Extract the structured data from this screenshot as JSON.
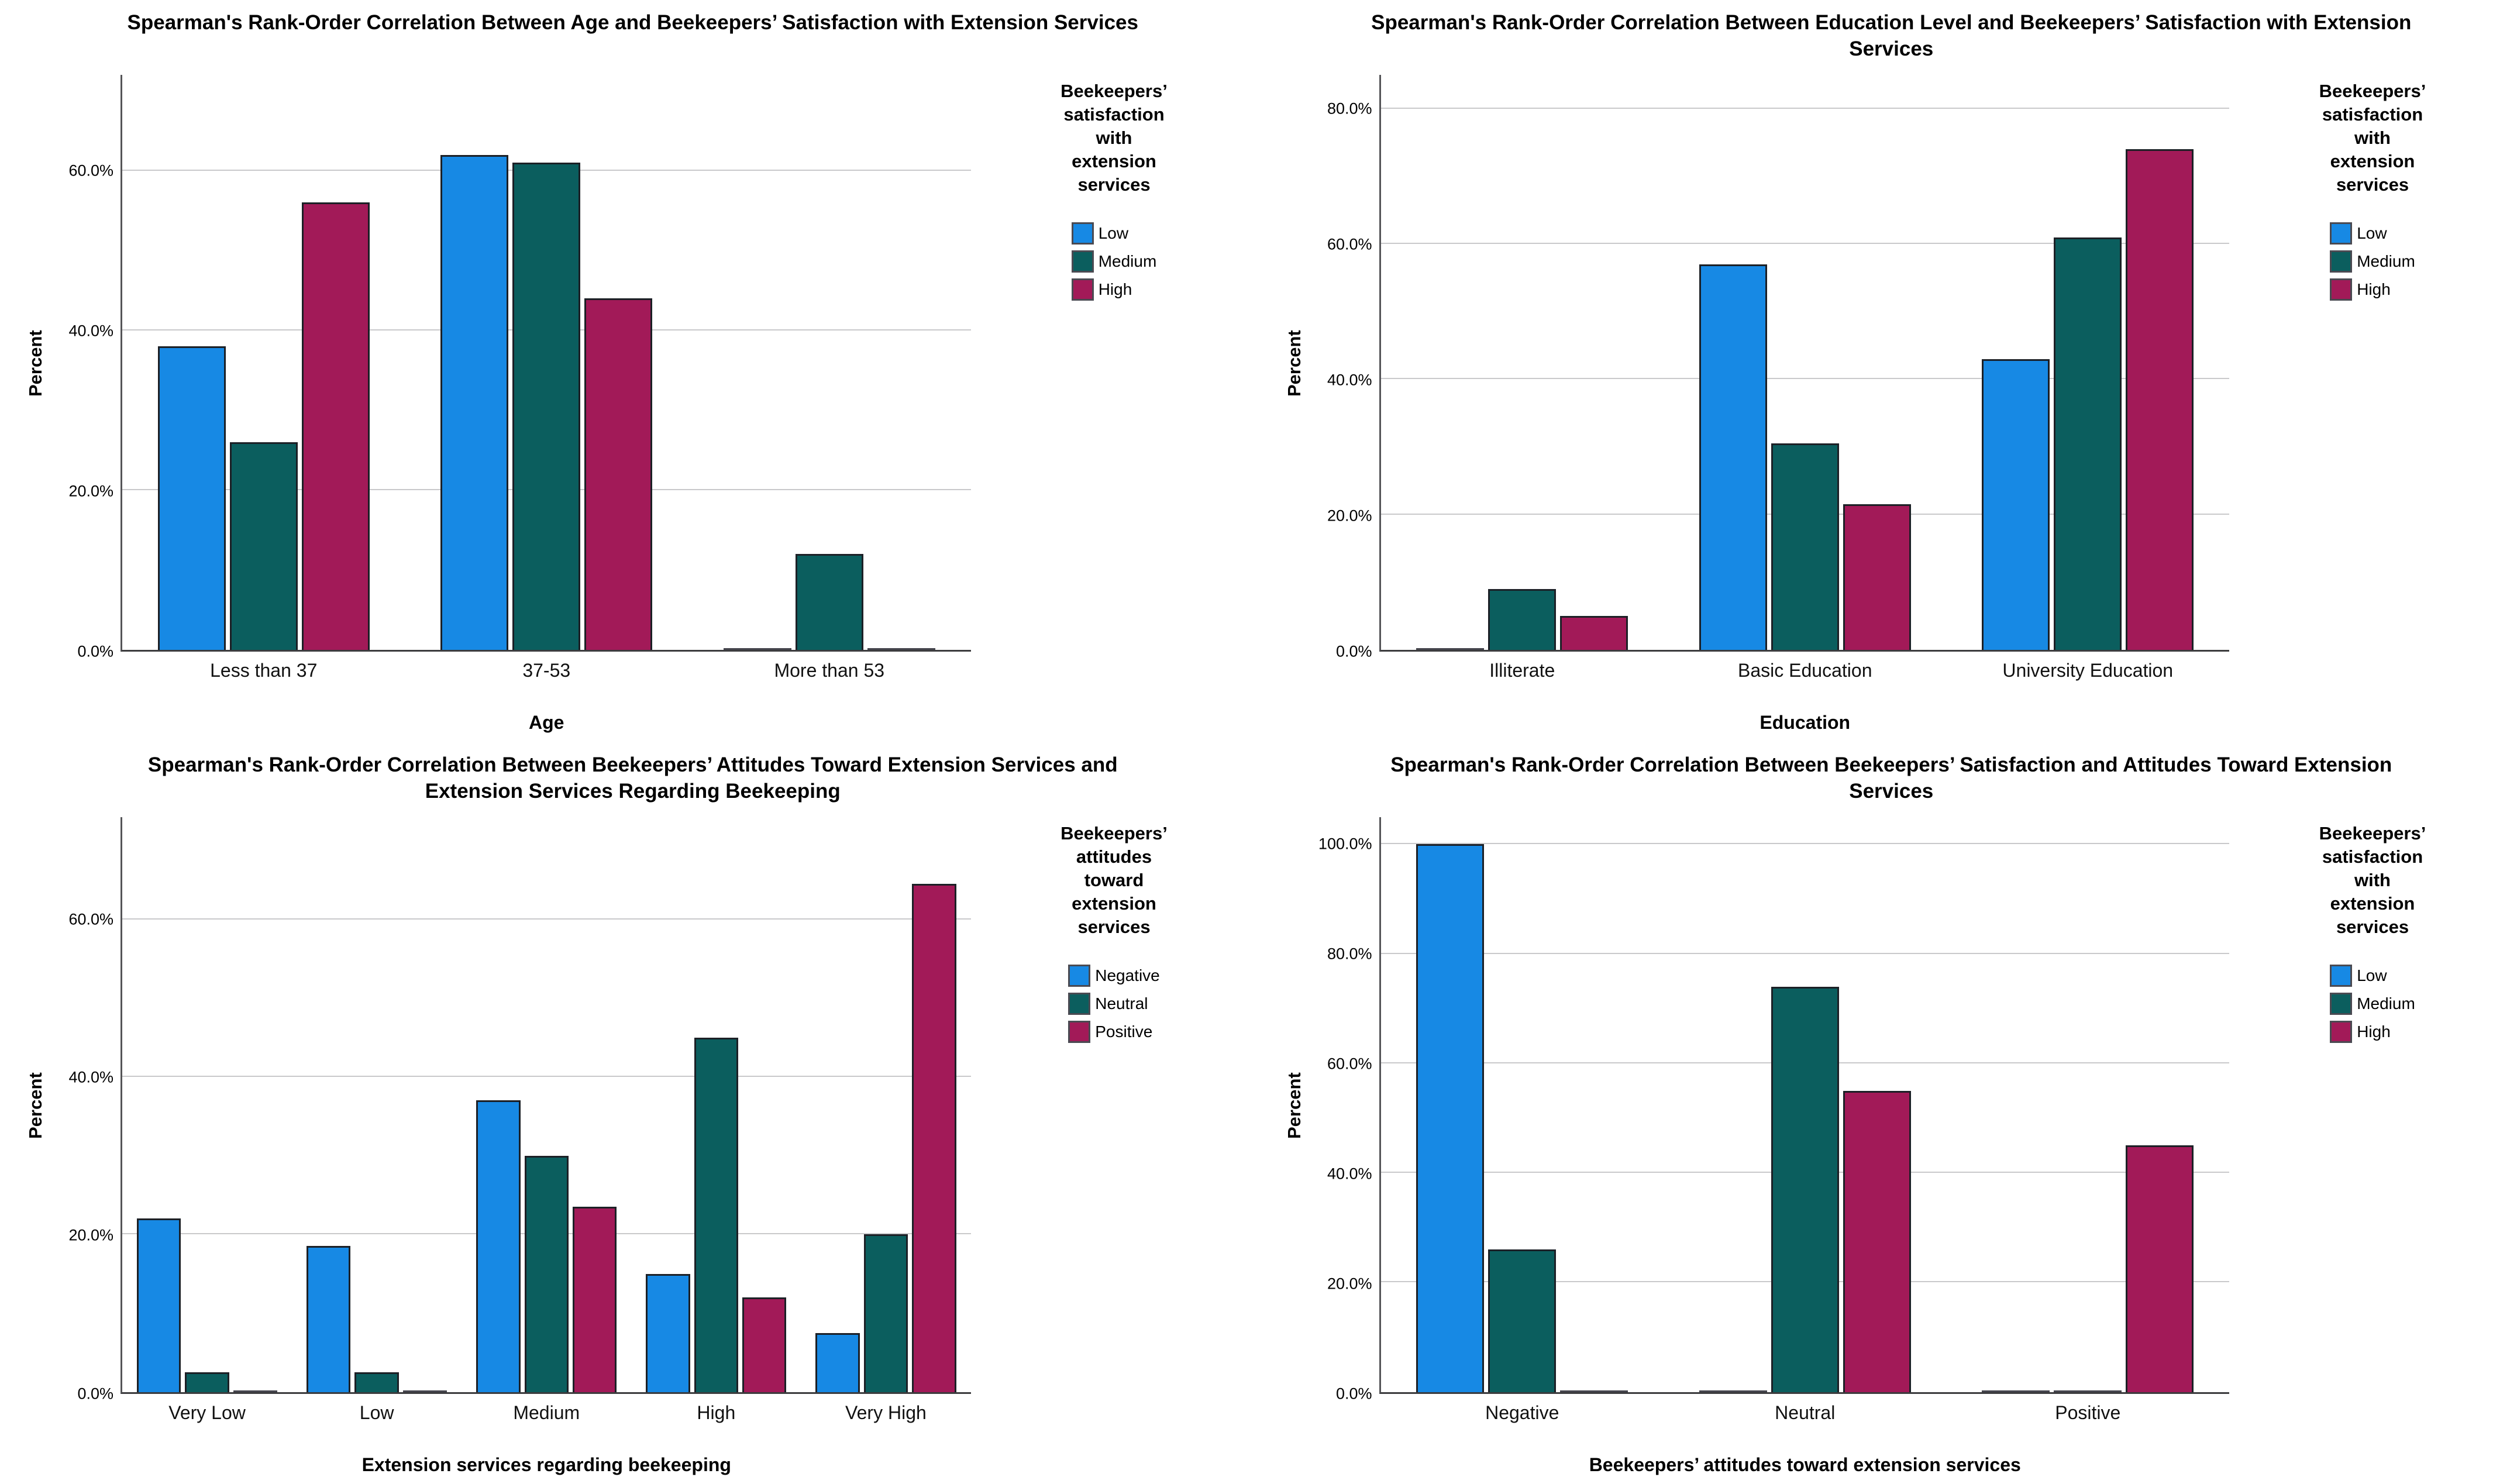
{
  "page": {
    "background": "#ffffff",
    "ylabel_all": "Percent"
  },
  "palette": {
    "blue": "#1789E4",
    "teal": "#0B5E5E",
    "crimson": "#A21A58",
    "gridline": "#c9c9cb",
    "axis": "#555558"
  },
  "chart_data": [
    {
      "type": "bar",
      "title": "Spearman's Rank-Order Correlation Between Age and Beekeepers’ Satisfaction with Extension Services",
      "title_lines": [
        "Spearman's Rank-Order Correlation Between Age and Beekeepers’ Satisfaction with Extension Services"
      ],
      "xlabel": "Age",
      "ylabel": "Percent",
      "categories": [
        "Less than 37",
        "37-53",
        "More than 53"
      ],
      "series": [
        {
          "name": "Low",
          "color": "#1789E4",
          "values": [
            38,
            62,
            0
          ]
        },
        {
          "name": "Medium",
          "color": "#0B5E5E",
          "values": [
            26,
            61,
            12
          ]
        },
        {
          "name": "High",
          "color": "#A21A58",
          "values": [
            56,
            44,
            0
          ]
        }
      ],
      "yticks": [
        0,
        20,
        40,
        60
      ],
      "ytick_labels": [
        "0.0%",
        "20.0%",
        "40.0%",
        "60.0%"
      ],
      "ylim": [
        0,
        72
      ],
      "grid": true,
      "legend_position": "right",
      "legend_title": "Beekeepers’ satisfaction with extension services",
      "legend_title_lines": [
        "Beekeepers’",
        "satisfaction",
        "with",
        "extension",
        "services"
      ]
    },
    {
      "type": "bar",
      "title": "Spearman's Rank-Order Correlation Between Education Level and Beekeepers’ Satisfaction with Extension Services",
      "title_lines": [
        "Spearman's Rank-Order Correlation Between Education Level and Beekeepers’ Satisfaction with Extension",
        "Services"
      ],
      "xlabel": "Education",
      "ylabel": "Percent",
      "categories": [
        "Illiterate",
        "Basic Education",
        "University Education"
      ],
      "series": [
        {
          "name": "Low",
          "color": "#1789E4",
          "values": [
            0,
            57,
            43
          ]
        },
        {
          "name": "Medium",
          "color": "#0B5E5E",
          "values": [
            9,
            30.5,
            61
          ]
        },
        {
          "name": "High",
          "color": "#A21A58",
          "values": [
            5,
            21.5,
            74
          ]
        }
      ],
      "yticks": [
        0,
        20,
        40,
        60,
        80
      ],
      "ytick_labels": [
        "0.0%",
        "20.0%",
        "40.0%",
        "60.0%",
        "80.0%"
      ],
      "ylim": [
        0,
        85
      ],
      "grid": true,
      "legend_position": "right",
      "legend_title": "Beekeepers’ satisfaction with extension services",
      "legend_title_lines": [
        "Beekeepers’",
        "satisfaction",
        "with",
        "extension",
        "services"
      ]
    },
    {
      "type": "bar",
      "title": "Spearman's Rank-Order Correlation Between Beekeepers’ Attitudes Toward Extension Services and Extension Services Regarding Beekeeping",
      "title_lines": [
        "Spearman's Rank-Order Correlation Between Beekeepers’ Attitudes Toward Extension Services and",
        "Extension Services Regarding Beekeeping"
      ],
      "xlabel": "Extension services regarding beekeeping",
      "ylabel": "Percent",
      "categories": [
        "Very Low",
        "Low",
        "Medium",
        "High",
        "Very High"
      ],
      "series": [
        {
          "name": "Negative",
          "color": "#1789E4",
          "values": [
            22,
            18.5,
            37,
            15,
            7.5
          ]
        },
        {
          "name": "Neutral",
          "color": "#0B5E5E",
          "values": [
            2.5,
            2.5,
            30,
            45,
            20
          ]
        },
        {
          "name": "Positive",
          "color": "#A21A58",
          "values": [
            0,
            0,
            23.5,
            12,
            64.5
          ]
        }
      ],
      "yticks": [
        0,
        20,
        40,
        60
      ],
      "ytick_labels": [
        "0.0%",
        "20.0%",
        "40.0%",
        "60.0%"
      ],
      "ylim": [
        0,
        73
      ],
      "grid": true,
      "legend_position": "right",
      "legend_title": "Beekeepers’ attitudes toward extension services",
      "legend_title_lines": [
        "Beekeepers’",
        "attitudes",
        "toward",
        "extension",
        "services"
      ]
    },
    {
      "type": "bar",
      "title": "Spearman's Rank-Order Correlation Between Beekeepers’ Satisfaction and Attitudes Toward Extension Services",
      "title_lines": [
        "Spearman's Rank-Order Correlation Between Beekeepers’ Satisfaction and Attitudes Toward Extension",
        "Services"
      ],
      "xlabel": "Beekeepers’ attitudes toward extension services",
      "ylabel": "Percent",
      "categories": [
        "Negative",
        "Neutral",
        "Positive"
      ],
      "series": [
        {
          "name": "Low",
          "color": "#1789E4",
          "values": [
            100,
            0,
            0
          ]
        },
        {
          "name": "Medium",
          "color": "#0B5E5E",
          "values": [
            26,
            74,
            0
          ]
        },
        {
          "name": "High",
          "color": "#A21A58",
          "values": [
            0,
            55,
            45
          ]
        }
      ],
      "yticks": [
        0,
        20,
        40,
        60,
        80,
        100
      ],
      "ytick_labels": [
        "0.0%",
        "20.0%",
        "40.0%",
        "60.0%",
        "80.0%",
        "100.0%"
      ],
      "ylim": [
        0,
        105
      ],
      "grid": true,
      "legend_position": "right",
      "legend_title": "Beekeepers’ satisfaction with extension services",
      "legend_title_lines": [
        "Beekeepers’",
        "satisfaction",
        "with",
        "extension",
        "services"
      ]
    }
  ]
}
